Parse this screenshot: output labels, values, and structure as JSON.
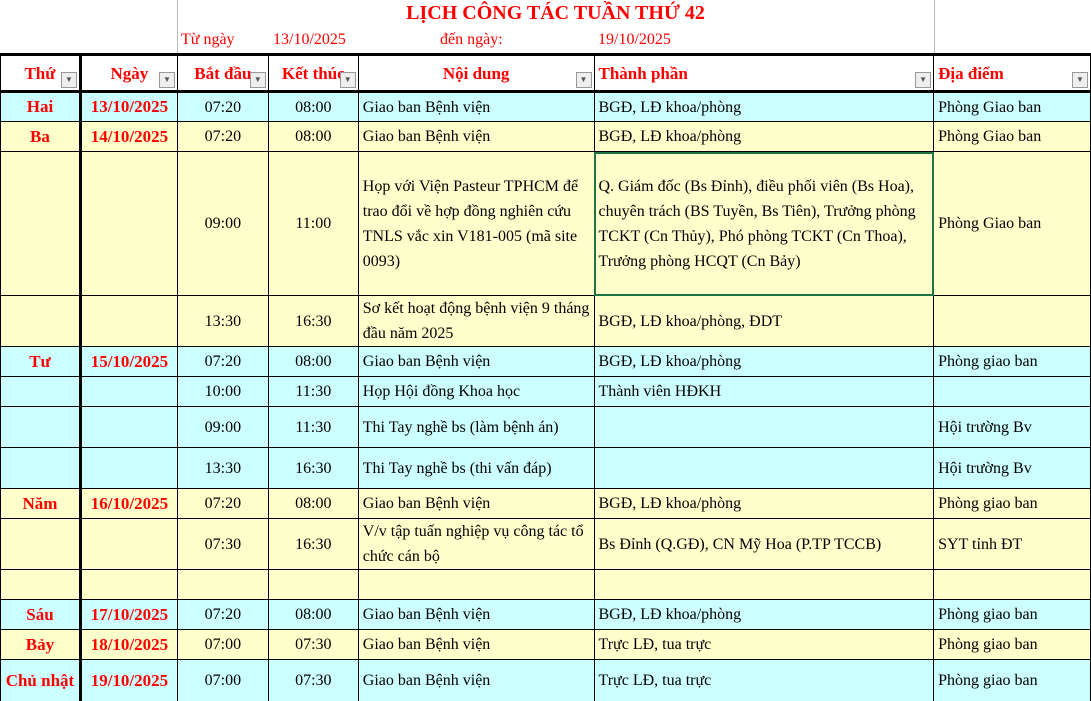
{
  "title": "LỊCH CÔNG TÁC TUẦN THỨ 42",
  "from_label": "Từ ngày",
  "from_date": "13/10/2025",
  "to_label": "đến ngày:",
  "to_date": "19/10/2025",
  "headers": [
    "Thứ",
    "Ngày",
    "Bắt đầu",
    "Kết thúc",
    "Nội dung",
    "Thành phần",
    "Địa điểm"
  ],
  "colors": {
    "cyan": "#ccffff",
    "yellow": "#ffffcc",
    "header_text": "#ff0000"
  },
  "rows": [
    {
      "thu": "Hai",
      "ngay": "13/10/2025",
      "start": "07:20",
      "end": "08:00",
      "content": "Giao ban Bệnh viện",
      "members": "BGĐ, LĐ khoa/phòng",
      "place": "Phòng Giao ban",
      "bg": "cyan"
    },
    {
      "thu": "Ba",
      "ngay": "14/10/2025",
      "start": "07:20",
      "end": "08:00",
      "content": "Giao ban Bệnh viện",
      "members": "BGĐ, LĐ khoa/phòng",
      "place": "Phòng Giao ban",
      "bg": "yellow"
    },
    {
      "thu": "",
      "ngay": "",
      "start": "09:00",
      "end": "11:00",
      "content": "Họp với Viện Pasteur TPHCM để trao đổi về hợp đồng nghiên cứu TNLS vắc xin V181-005 (mã site 0093)",
      "members": "Q. Giám đốc (Bs Đỉnh), điều phối viên (Bs Hoa), chuyên trách (BS Tuyền, Bs Tiên), Trưởng phòng TCKT (Cn Thủy), Phó phòng TCKT (Cn Thoa), Trưởng phòng HCQT (Cn Bảy)",
      "place": "Phòng Giao ban",
      "bg": "yellow"
    },
    {
      "thu": "",
      "ngay": "",
      "start": "13:30",
      "end": "16:30",
      "content": "Sơ kết hoạt động bệnh viện 9 tháng đầu năm 2025",
      "members": "BGĐ, LĐ khoa/phòng, ĐDT",
      "place": "",
      "bg": "yellow"
    },
    {
      "thu": "Tư",
      "ngay": "15/10/2025",
      "start": "07:20",
      "end": "08:00",
      "content": "Giao ban Bệnh viện",
      "members": "BGĐ, LĐ khoa/phòng",
      "place": "Phòng  giao ban",
      "bg": "cyan"
    },
    {
      "thu": "",
      "ngay": "",
      "start": "10:00",
      "end": "11:30",
      "content": "Họp Hội đồng Khoa học",
      "members": "Thành viên HĐKH",
      "place": "",
      "bg": "cyan"
    },
    {
      "thu": "",
      "ngay": "",
      "start": "09:00",
      "end": "11:30",
      "content": "Thi Tay nghề bs (làm bệnh án)",
      "members": "",
      "place": "Hội trường Bv",
      "bg": "cyan"
    },
    {
      "thu": "",
      "ngay": "",
      "start": "13:30",
      "end": "16:30",
      "content": "Thi Tay nghề bs (thi vấn đáp)",
      "members": "",
      "place": "Hội trường Bv",
      "bg": "cyan"
    },
    {
      "thu": "Năm",
      "ngay": "16/10/2025",
      "start": "07:20",
      "end": "08:00",
      "content": "Giao ban Bệnh viện",
      "members": "BGĐ, LĐ khoa/phòng",
      "place": "Phòng  giao ban",
      "bg": "yellow"
    },
    {
      "thu": "",
      "ngay": "",
      "start": "07:30",
      "end": "16:30",
      "content": "V/v tập tuấn nghiệp vụ công tác tổ chức cán bộ",
      "members": "Bs Đỉnh (Q.GĐ), CN Mỹ Hoa (P.TP TCCB)",
      "place": "SYT tỉnh ĐT",
      "bg": "yellow"
    },
    {
      "thu": "",
      "ngay": "",
      "start": "",
      "end": "",
      "content": "",
      "members": "",
      "place": "",
      "bg": "yellow"
    },
    {
      "thu": "Sáu",
      "ngay": "17/10/2025",
      "start": "07:20",
      "end": "08:00",
      "content": "Giao ban Bệnh viện",
      "members": "BGĐ, LĐ khoa/phòng",
      "place": "Phòng  giao ban",
      "bg": "cyan"
    },
    {
      "thu": "Bảy",
      "ngay": "18/10/2025",
      "start": "07:00",
      "end": "07:30",
      "content": "Giao ban Bệnh viện",
      "members": "Trực LĐ, tua trực",
      "place": "Phòng  giao ban",
      "bg": "yellow"
    },
    {
      "thu": "Chủ nhật",
      "ngay": "19/10/2025",
      "start": "07:00",
      "end": "07:30",
      "content": "Giao ban Bệnh viện",
      "members": "Trực LĐ, tua trực",
      "place": "Phòng  giao ban",
      "bg": "cyan"
    }
  ]
}
